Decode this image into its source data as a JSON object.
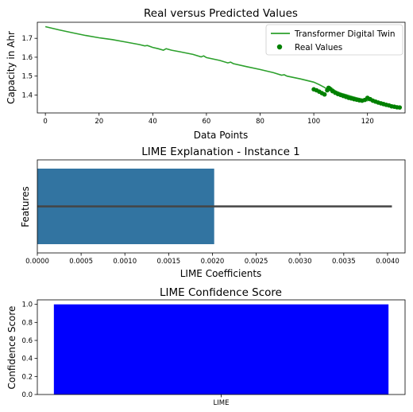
{
  "chart_data": [
    {
      "type": "line",
      "title": "Real versus Predicted Values",
      "xlabel": "Data Points",
      "ylabel": "Capacity in Ahr",
      "xlim": [
        -3,
        134
      ],
      "ylim": [
        1.305,
        1.785
      ],
      "xticks": [
        0,
        20,
        40,
        60,
        80,
        100,
        120
      ],
      "yticks": [
        1.3,
        1.4,
        1.5,
        1.6,
        1.7
      ],
      "legend_position": "top-right",
      "series": [
        {
          "name": "Transformer Digital Twin",
          "style": "line",
          "color": "#2ca02c",
          "x": [
            0,
            5,
            10,
            15,
            20,
            25,
            30,
            35,
            37,
            38,
            40,
            42,
            44,
            45,
            47,
            50,
            55,
            58,
            59,
            60,
            65,
            68,
            69,
            70,
            75,
            80,
            85,
            88,
            89,
            90,
            95,
            100,
            102,
            104,
            105,
            106,
            108,
            110,
            112,
            114,
            116,
            118,
            120,
            121,
            122,
            124,
            126,
            128,
            130,
            131,
            132
          ],
          "y": [
            1.762,
            1.745,
            1.73,
            1.715,
            1.703,
            1.693,
            1.68,
            1.667,
            1.66,
            1.662,
            1.652,
            1.645,
            1.637,
            1.645,
            1.637,
            1.629,
            1.615,
            1.602,
            1.607,
            1.598,
            1.583,
            1.57,
            1.574,
            1.566,
            1.55,
            1.535,
            1.518,
            1.505,
            1.507,
            1.5,
            1.485,
            1.468,
            1.455,
            1.44,
            1.43,
            1.443,
            1.422,
            1.41,
            1.402,
            1.393,
            1.385,
            1.378,
            1.37,
            1.376,
            1.368,
            1.36,
            1.352,
            1.343,
            1.337,
            1.335,
            1.333
          ]
        },
        {
          "name": "Real Values",
          "style": "scatter",
          "color": "#008000",
          "x": [
            100,
            101,
            102,
            103,
            104,
            105,
            105.5,
            106,
            107,
            108,
            109,
            110,
            111,
            112,
            113,
            114,
            115,
            116,
            117,
            118,
            119,
            120,
            121,
            122,
            123,
            124,
            125,
            126,
            127,
            128,
            129,
            130,
            131,
            132
          ],
          "y": [
            1.43,
            1.425,
            1.418,
            1.41,
            1.403,
            1.425,
            1.438,
            1.432,
            1.42,
            1.412,
            1.405,
            1.4,
            1.395,
            1.39,
            1.385,
            1.382,
            1.378,
            1.375,
            1.372,
            1.37,
            1.374,
            1.385,
            1.378,
            1.37,
            1.365,
            1.36,
            1.356,
            1.352,
            1.348,
            1.345,
            1.34,
            1.338,
            1.335,
            1.334
          ]
        }
      ]
    },
    {
      "type": "bar",
      "orientation": "horizontal",
      "title": "LIME Explanation - Instance 1",
      "xlabel": "LIME Coefficients",
      "ylabel": "Features",
      "xlim": [
        0,
        0.0042
      ],
      "xticks": [
        "0.0000",
        "0.0005",
        "0.0010",
        "0.0015",
        "0.0020",
        "0.0025",
        "0.0030",
        "0.0035",
        "0.0040"
      ],
      "values": [
        0.00202
      ],
      "color": "#3274a1",
      "errorbar_extent": 0.00405
    },
    {
      "type": "bar",
      "title": "LIME Confidence Score",
      "xlabel": "",
      "ylabel": "Confidence Score",
      "categories": [
        "LIME"
      ],
      "values": [
        1.0
      ],
      "color": "#0000ff",
      "ylim": [
        0,
        1.05
      ],
      "yticks": [
        "0.0",
        "0.2",
        "0.4",
        "0.6",
        "0.8",
        "1.0"
      ]
    }
  ]
}
